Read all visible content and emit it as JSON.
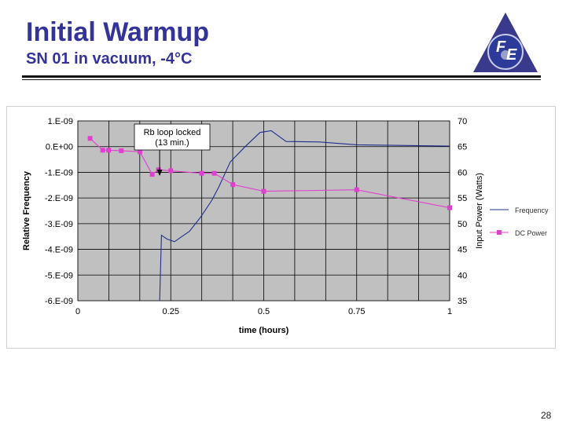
{
  "slide": {
    "title": "Initial Warmup",
    "subtitle": "SN 01 in vacuum, -4°C",
    "page_number": "28",
    "logo_letters": [
      "F",
      "E"
    ],
    "logo_colors": {
      "triangle": "#3a3a8c",
      "circle": "#2c3a9a",
      "inner": "#9aa0c8"
    }
  },
  "chart_data": {
    "type": "line",
    "xlabel": "time (hours)",
    "ylabel_left": "Relative Frequency",
    "ylabel_right": "Input Power (Watts)",
    "xlim": [
      0,
      1
    ],
    "x_ticks": [
      0,
      0.25,
      0.5,
      0.75,
      1
    ],
    "x_tick_labels": [
      "0",
      "0.25",
      "0.5",
      "0.75",
      "1"
    ],
    "ylim_left": [
      -6e-09,
      1e-09
    ],
    "y_left_ticks": [
      1e-09,
      0,
      -1e-09,
      -2e-09,
      -3e-09,
      -4e-09,
      -5e-09,
      -6e-09
    ],
    "y_left_tick_labels": [
      "1.E-09",
      "0.E+00",
      "-1.E-09",
      "-2.E-09",
      "-3.E-09",
      "-4.E-09",
      "-5.E-09",
      "-6.E-09"
    ],
    "ylim_right": [
      35,
      70
    ],
    "y_right_ticks": [
      70,
      65,
      60,
      55,
      50,
      45,
      40,
      35
    ],
    "y_right_tick_labels": [
      "70",
      "65",
      "60",
      "55",
      "50",
      "45",
      "40",
      "35"
    ],
    "grid": true,
    "plot_background": "#c0c0c0",
    "legend_position": "right",
    "annotation": {
      "lines": [
        "Rb loop locked",
        "(13 min.)"
      ],
      "x": 0.22
    },
    "series": [
      {
        "name": "Frequency",
        "axis": "left",
        "color": "#1f2f8f",
        "marker": "none",
        "x": [
          0.22,
          0.225,
          0.24,
          0.26,
          0.28,
          0.3,
          0.33,
          0.36,
          0.38,
          0.41,
          0.45,
          0.49,
          0.52,
          0.56,
          0.65,
          0.75,
          1.0
        ],
        "y": [
          -6e-09,
          -3.45e-09,
          -3.6e-09,
          -3.7e-09,
          -3.5e-09,
          -3.3e-09,
          -2.75e-09,
          -2.1e-09,
          -1.55e-09,
          -6e-10,
          0.0,
          5.5e-10,
          6.2e-10,
          2e-10,
          1.8e-10,
          7e-11,
          2e-11
        ]
      },
      {
        "name": "DC Power",
        "axis": "right",
        "color": "#e040d0",
        "marker": "square",
        "x": [
          0.033,
          0.067,
          0.083,
          0.117,
          0.167,
          0.2,
          0.217,
          0.25,
          0.333,
          0.367,
          0.417,
          0.5,
          0.75,
          1.0
        ],
        "y": [
          66.6,
          64.3,
          64.3,
          64.2,
          64.0,
          59.6,
          60.5,
          60.3,
          59.8,
          59.8,
          57.6,
          56.3,
          56.6,
          53.1
        ]
      }
    ]
  }
}
